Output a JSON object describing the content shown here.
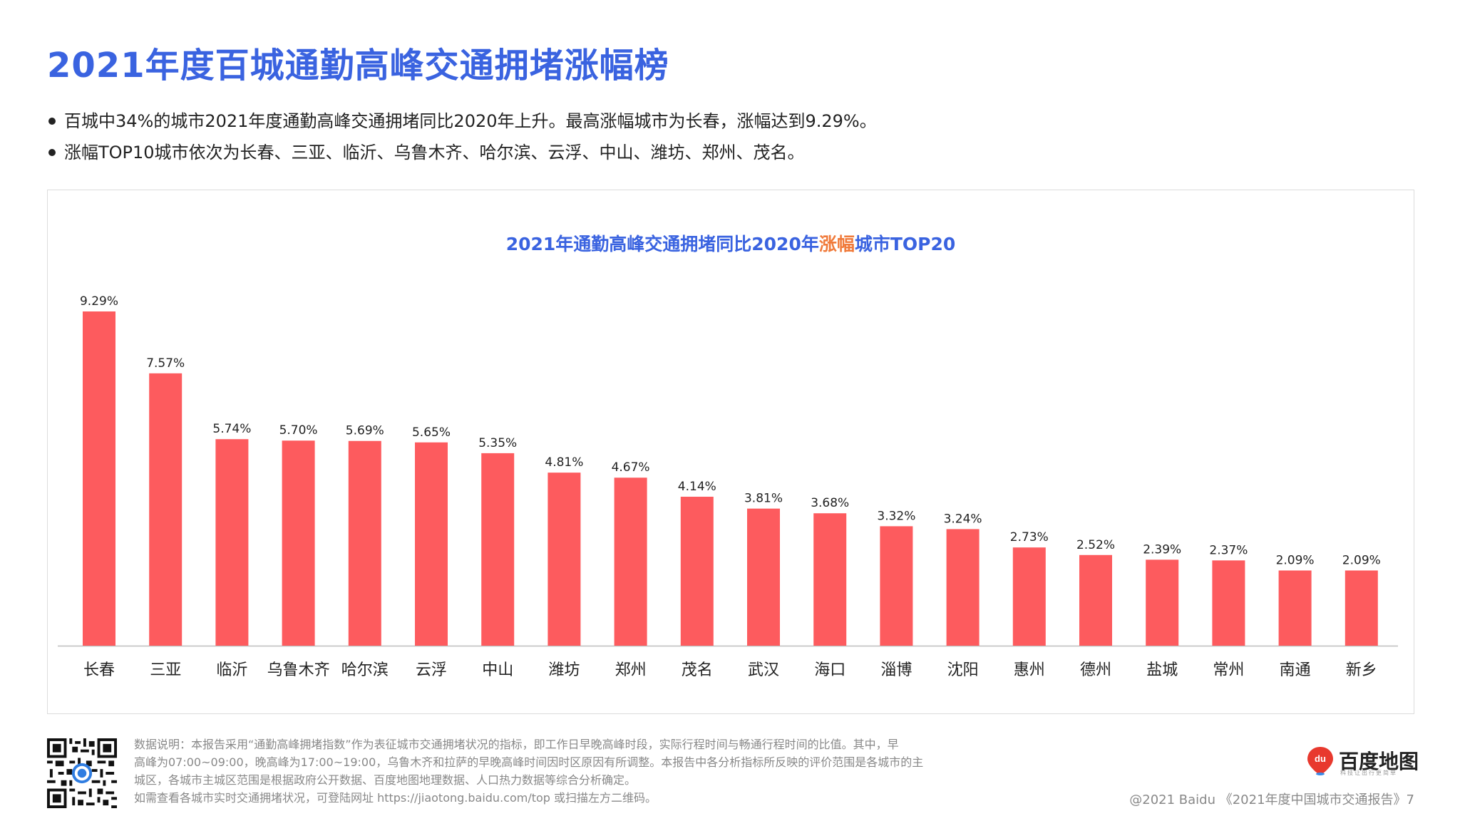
{
  "header": {
    "title": "2021年度百城通勤高峰交通拥堵涨幅榜",
    "bullets": [
      "百城中34%的城市2021年度通勤高峰交通拥堵同比2020年上升。最高涨幅城市为长春，涨幅达到9.29%。",
      "涨幅TOP10城市依次为长春、三亚、临沂、乌鲁木齐、哈尔滨、云浮、中山、潍坊、郑州、茂名。"
    ]
  },
  "chart_title": {
    "prefix": "2021年通勤高峰交通拥堵同比2020年",
    "highlight": "涨幅",
    "suffix": "城市TOP20"
  },
  "chart_data": {
    "type": "bar",
    "title": "2021年通勤高峰交通拥堵同比2020年涨幅城市TOP20",
    "categories": [
      "长春",
      "三亚",
      "临沂",
      "乌鲁木齐",
      "哈尔滨",
      "云浮",
      "中山",
      "潍坊",
      "郑州",
      "茂名",
      "武汉",
      "海口",
      "淄博",
      "沈阳",
      "惠州",
      "德州",
      "盐城",
      "常州",
      "南通",
      "新乡"
    ],
    "values": [
      9.29,
      7.57,
      5.74,
      5.7,
      5.69,
      5.65,
      5.35,
      4.81,
      4.67,
      4.14,
      3.81,
      3.68,
      3.32,
      3.24,
      2.73,
      2.52,
      2.39,
      2.37,
      2.09,
      2.09
    ],
    "value_labels": [
      "9.29%",
      "7.57%",
      "5.74%",
      "5.70%",
      "5.69%",
      "5.65%",
      "5.35%",
      "4.81%",
      "4.67%",
      "4.14%",
      "3.81%",
      "3.68%",
      "3.32%",
      "3.24%",
      "2.73%",
      "2.52%",
      "2.39%",
      "2.37%",
      "2.09%",
      "2.09%"
    ],
    "unit": "%",
    "ylim": [
      0,
      10
    ],
    "grid": false,
    "bar_color": "#fd5b5e"
  },
  "footer": {
    "note_lines": [
      "数据说明：本报告采用“通勤高峰拥堵指数”作为表征城市交通拥堵状况的指标，即工作日早晚高峰时段，实际行程时间与畅通行程时间的比值。其中，早",
      "高峰为07:00~09:00，晚高峰为17:00~19:00，乌鲁木齐和拉萨的早晚高峰时间因时区原因有所调整。本报告中各分析指标所反映的评价范围是各城市的主",
      "城区，各城市主城区范围是根据政府公开数据、百度地图地理数据、人口热力数据等综合分析确定。",
      "如需查看各城市实时交通拥堵状况，可登陆网址 https://jiaotong.baidu.com/top 或扫描左方二维码。"
    ],
    "logo_text": "百度地图",
    "logo_badge": "du",
    "logo_sub": "科技让出行更简单",
    "copyright": "@2021 Baidu 《2021年度中国城市交通报告》7"
  },
  "colors": {
    "title_blue": "#3a63e0",
    "highlight_orange": "#f07a3a",
    "bar": "#fd5b5e"
  },
  "icons": [
    "qr-code-icon",
    "baidu-map-pin-icon"
  ]
}
